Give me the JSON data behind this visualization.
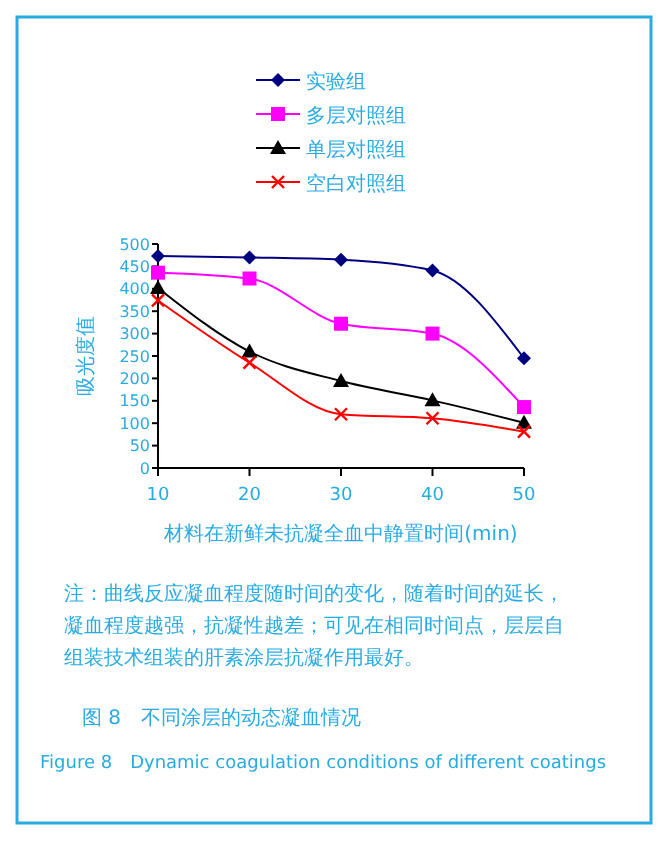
{
  "chart_data": {
    "type": "line",
    "title": "图 8　不同涂层的动态凝血情况",
    "subtitle": "Figure 8　Dynamic coagulation conditions of different coatings",
    "xlabel": "材料在新鲜未抗凝全血中静置时间(min)",
    "ylabel": "吸光度值",
    "annotations": [
      "注：曲线反应凝血程度随时间的变化，随着时间的延长，凝血程度越强，抗凝性越差；可见在相同时间点，层层自组装技术组装的肝素涂层抗凝作用最好。"
    ],
    "x": [
      10,
      20,
      30,
      40,
      50
    ],
    "xlim": [
      10,
      50
    ],
    "xticks": [
      10,
      20,
      30,
      40,
      50
    ],
    "ylim": [
      0,
      500
    ],
    "yticks": [
      0,
      50,
      100,
      150,
      200,
      250,
      300,
      350,
      400,
      450,
      500
    ],
    "grid": false,
    "legend": "top",
    "series": [
      {
        "name": "实验组",
        "color": "#000080",
        "marker": "diamond",
        "values": [
          473,
          470,
          465,
          441,
          245
        ]
      },
      {
        "name": "多层对照组",
        "color": "#ff00ff",
        "marker": "square",
        "values": [
          436,
          423,
          322,
          300,
          136
        ]
      },
      {
        "name": "单层对照组",
        "color": "#000000",
        "marker": "triangle",
        "values": [
          402,
          260,
          194,
          151,
          101
        ]
      },
      {
        "name": "空白对照组",
        "color": "#ff0000",
        "marker": "cross",
        "values": [
          374,
          235,
          120,
          111,
          81
        ]
      }
    ]
  }
}
